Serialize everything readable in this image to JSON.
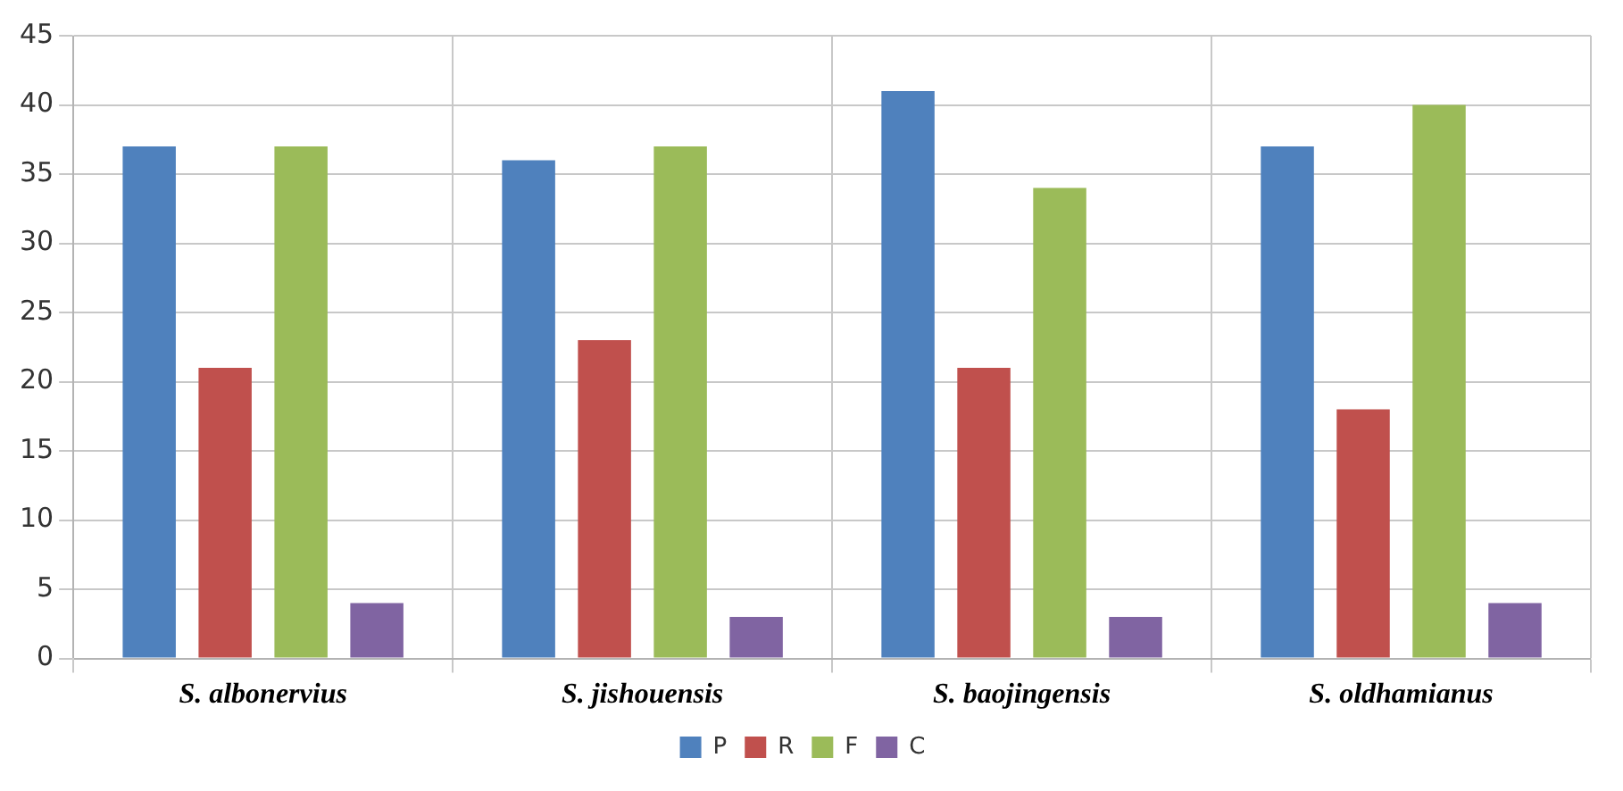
{
  "chart_data": {
    "type": "bar",
    "categories": [
      "S. albonervius",
      "S. jishouensis",
      "S. baojingensis",
      "S. oldhamianus"
    ],
    "series": [
      {
        "name": "P",
        "color": "#4f81bd",
        "values": [
          37,
          36,
          41,
          37
        ]
      },
      {
        "name": "R",
        "color": "#c0504d",
        "values": [
          21,
          23,
          21,
          18
        ]
      },
      {
        "name": "F",
        "color": "#9bbb59",
        "values": [
          37,
          37,
          34,
          40
        ]
      },
      {
        "name": "C",
        "color": "#8064a2",
        "values": [
          4,
          3,
          3,
          4
        ]
      }
    ],
    "ylim": [
      0,
      45
    ],
    "yticks": [
      0,
      5,
      10,
      15,
      20,
      25,
      30,
      35,
      40,
      45
    ],
    "grid": true,
    "legend": "bottom"
  }
}
